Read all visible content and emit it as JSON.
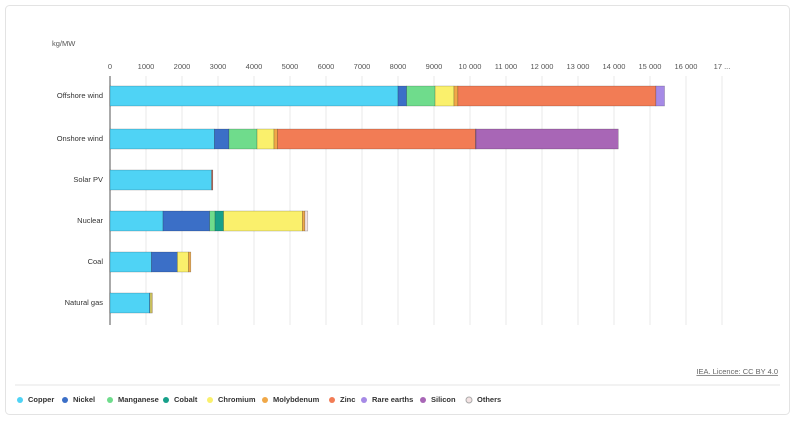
{
  "chart_data": {
    "type": "stacked-bar-horizontal",
    "unit_label": "kg/MW",
    "source": "IEA. Licence: CC BY 4.0",
    "categories": [
      "Offshore wind",
      "Onshore wind",
      "Solar PV",
      "Nuclear",
      "Coal",
      "Natural gas"
    ],
    "series": [
      {
        "name": "Copper",
        "color": "#4fd3f5",
        "values": [
          8000,
          2900,
          2822,
          1473,
          1150,
          1100
        ]
      },
      {
        "name": "Nickel",
        "color": "#3b6fc7",
        "values": [
          240,
          404,
          0,
          1297,
          721,
          16
        ]
      },
      {
        "name": "Manganese",
        "color": "#6fdc8c",
        "values": [
          790,
          781,
          0,
          148,
          0,
          0
        ]
      },
      {
        "name": "Cobalt",
        "color": "#17a08a",
        "values": [
          0,
          0,
          0,
          236,
          0,
          0
        ]
      },
      {
        "name": "Chromium",
        "color": "#faf06c",
        "values": [
          525,
          470,
          0,
          2190,
          308,
          48
        ]
      },
      {
        "name": "Molybdenum",
        "color": "#f0a848",
        "values": [
          109,
          99,
          0,
          70,
          66,
          10
        ]
      },
      {
        "name": "Zinc",
        "color": "#f27c55",
        "values": [
          5500,
          5500,
          30,
          0,
          0,
          0
        ]
      },
      {
        "name": "Rare earths",
        "color": "#a68ae6",
        "values": [
          239,
          14,
          0,
          0,
          0,
          0
        ]
      },
      {
        "name": "Silicon",
        "color": "#a866b6",
        "values": [
          0,
          3950,
          4,
          0,
          0,
          0
        ]
      },
      {
        "name": "Others",
        "color": "#f3e3e3",
        "values": [
          0,
          0,
          0,
          80,
          0,
          0
        ]
      }
    ],
    "xlim": [
      0,
      17000
    ],
    "xticks": [
      0,
      1000,
      2000,
      3000,
      4000,
      5000,
      6000,
      7000,
      8000,
      9000,
      {
        "value": 10000,
        "label": "10 000"
      },
      {
        "value": 11000,
        "label": "11 000"
      },
      {
        "value": 12000,
        "label": "12 000"
      },
      {
        "value": 13000,
        "label": "13 000"
      },
      {
        "value": 14000,
        "label": "14 000"
      },
      {
        "value": 15000,
        "label": "15 000"
      },
      {
        "value": 16000,
        "label": "16 000"
      },
      {
        "value": 17000,
        "label": "17 ..."
      }
    ],
    "grid": true
  }
}
